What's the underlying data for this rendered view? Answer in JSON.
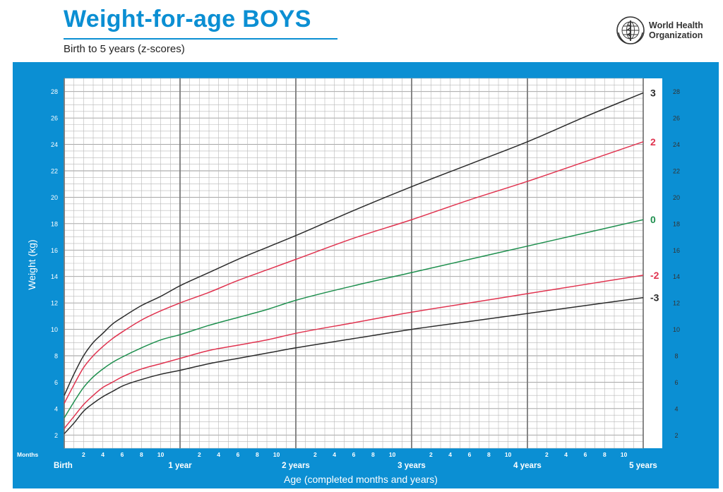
{
  "header": {
    "title": "Weight-for-age BOYS",
    "subtitle": "Birth to 5 years (z-scores)",
    "org_line1": "World Health",
    "org_line2": "Organization",
    "logo": "who-emblem-icon"
  },
  "colors": {
    "frame": "#0b8fd3",
    "grid_minor": "#b8b8b8",
    "grid_major": "#7a7a7a",
    "z3": "#2b2b2b",
    "z2": "#e0334f",
    "z0": "#1e8f4e",
    "zneg2": "#e0334f",
    "zneg3": "#2b2b2b"
  },
  "chart_data": {
    "type": "line",
    "title": "Weight-for-age BOYS",
    "subtitle": "Birth to 5 years (z-scores)",
    "xlabel": "Age (completed months and years)",
    "ylabel": "Weight (kg)",
    "x_unit_label": "Months",
    "xlim": [
      0,
      60
    ],
    "ylim": [
      1,
      29
    ],
    "y_ticks": [
      2,
      4,
      6,
      8,
      10,
      12,
      14,
      16,
      18,
      20,
      22,
      24,
      26,
      28
    ],
    "month_tick_labels": [
      "2",
      "4",
      "6",
      "8",
      "10"
    ],
    "year_labels": [
      {
        "month": 0,
        "label": "Birth"
      },
      {
        "month": 12,
        "label": "1 year"
      },
      {
        "month": 24,
        "label": "2 years"
      },
      {
        "month": 36,
        "label": "3 years"
      },
      {
        "month": 48,
        "label": "4 years"
      },
      {
        "month": 60,
        "label": "5 years"
      }
    ],
    "grid": true,
    "series": [
      {
        "name": "3",
        "color_key": "z3",
        "x": [
          0,
          1,
          2,
          3,
          4,
          5,
          6,
          8,
          10,
          12,
          15,
          18,
          21,
          24,
          30,
          36,
          42,
          48,
          54,
          60
        ],
        "values": [
          5.0,
          6.6,
          8.0,
          9.0,
          9.7,
          10.4,
          10.9,
          11.8,
          12.5,
          13.3,
          14.3,
          15.3,
          16.2,
          17.1,
          19.0,
          20.8,
          22.5,
          24.2,
          26.1,
          27.9
        ]
      },
      {
        "name": "2",
        "color_key": "z2",
        "x": [
          0,
          1,
          2,
          3,
          4,
          5,
          6,
          8,
          10,
          12,
          15,
          18,
          21,
          24,
          30,
          36,
          42,
          48,
          54,
          60
        ],
        "values": [
          4.4,
          5.8,
          7.1,
          8.0,
          8.7,
          9.3,
          9.8,
          10.7,
          11.4,
          12.0,
          12.8,
          13.7,
          14.5,
          15.3,
          16.9,
          18.3,
          19.8,
          21.2,
          22.7,
          24.2
        ]
      },
      {
        "name": "0",
        "color_key": "z0",
        "x": [
          0,
          1,
          2,
          3,
          4,
          5,
          6,
          8,
          10,
          12,
          15,
          18,
          21,
          24,
          30,
          36,
          42,
          48,
          54,
          60
        ],
        "values": [
          3.3,
          4.5,
          5.6,
          6.4,
          7.0,
          7.5,
          7.9,
          8.6,
          9.2,
          9.6,
          10.3,
          10.9,
          11.5,
          12.2,
          13.3,
          14.3,
          15.3,
          16.3,
          17.3,
          18.3
        ]
      },
      {
        "name": "-2",
        "color_key": "zneg2",
        "x": [
          0,
          1,
          2,
          3,
          4,
          5,
          6,
          8,
          10,
          12,
          15,
          18,
          21,
          24,
          30,
          36,
          42,
          48,
          54,
          60
        ],
        "values": [
          2.5,
          3.4,
          4.3,
          5.0,
          5.6,
          6.0,
          6.4,
          7.0,
          7.4,
          7.8,
          8.4,
          8.8,
          9.2,
          9.7,
          10.5,
          11.3,
          12.0,
          12.7,
          13.4,
          14.1
        ]
      },
      {
        "name": "-3",
        "color_key": "zneg3",
        "x": [
          0,
          1,
          2,
          3,
          4,
          5,
          6,
          8,
          10,
          12,
          15,
          18,
          21,
          24,
          30,
          36,
          42,
          48,
          54,
          60
        ],
        "values": [
          2.1,
          2.9,
          3.8,
          4.4,
          4.9,
          5.3,
          5.7,
          6.2,
          6.6,
          6.9,
          7.4,
          7.8,
          8.2,
          8.6,
          9.3,
          10.0,
          10.6,
          11.2,
          11.8,
          12.4
        ]
      }
    ]
  }
}
